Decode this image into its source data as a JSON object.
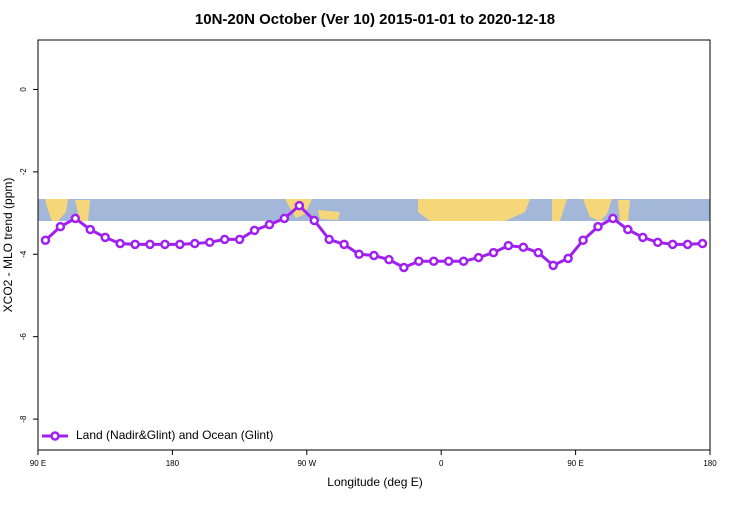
{
  "chart_data": {
    "type": "line",
    "title": "10N-20N October (Ver 10)   2015-01-01 to 2020-12-18",
    "x_label": "Longitude (deg E)",
    "y_label": "XCO2 - MLO trend (ppm)",
    "x": [
      95,
      105,
      115,
      125,
      135,
      145,
      155,
      165,
      175,
      185,
      195,
      205,
      215,
      225,
      235,
      245,
      255,
      265,
      275,
      285,
      295,
      305,
      315,
      325,
      335,
      345,
      355,
      365,
      375,
      385,
      395,
      405,
      415,
      425,
      435,
      445,
      455,
      465,
      475,
      485,
      495,
      505,
      515,
      525,
      535
    ],
    "series": [
      {
        "name": "Land (Nadir&Glint) and Ocean (Glint)",
        "color": "#a020f0",
        "values": [
          -3.66,
          -3.33,
          -3.13,
          -3.4,
          -3.59,
          -3.74,
          -3.76,
          -3.76,
          -3.76,
          -3.76,
          -3.74,
          -3.71,
          -3.64,
          -3.64,
          -3.42,
          -3.28,
          -3.13,
          -2.82,
          -3.18,
          -3.64,
          -3.76,
          -4.0,
          -4.03,
          -4.13,
          -4.32,
          -4.17,
          -4.17,
          -4.17,
          -4.17,
          -4.08,
          -3.96,
          -3.79,
          -3.83,
          -3.96,
          -4.27,
          -4.1,
          -3.66,
          -3.33,
          -3.13,
          -3.4,
          -3.59,
          -3.71,
          -3.76,
          -3.76,
          -3.74
        ]
      }
    ],
    "xlim": [
      90,
      540
    ],
    "xticks": [
      {
        "value": 90,
        "label": "90 E"
      },
      180,
      {
        "value": 270,
        "label": "90 W"
      },
      {
        "value": 360,
        "label": "0"
      },
      {
        "value": 450,
        "label": "90 E"
      },
      {
        "value": 540,
        "label": "180"
      }
    ],
    "ylim": [
      -8.75,
      1.2
    ],
    "yticks": [
      0,
      -2,
      -4,
      -6,
      -8
    ],
    "legend": "bottom-left"
  }
}
